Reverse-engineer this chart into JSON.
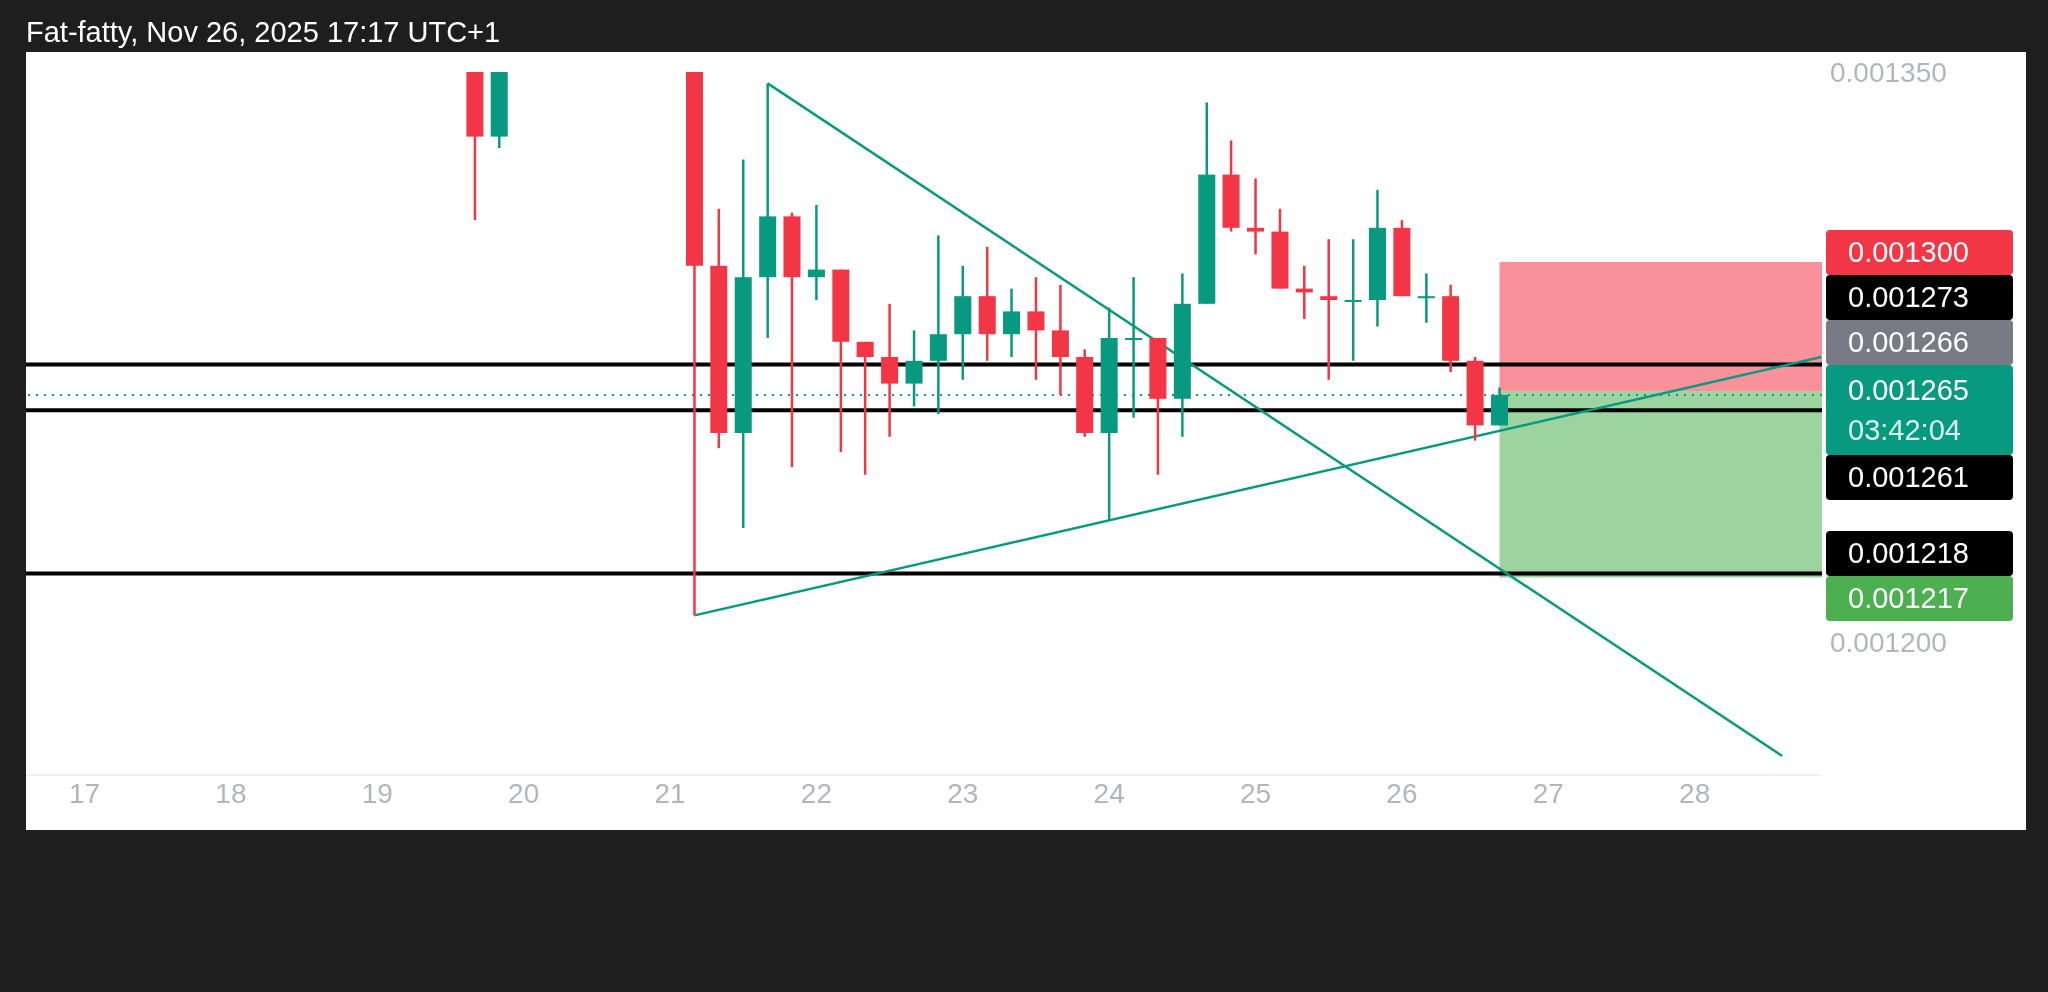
{
  "chart_data": {
    "type": "candlestick",
    "title": "Fat-fatty, Nov 26, 2025 17:17 UTC+1",
    "x": [
      19.667,
      19.833,
      21.167,
      21.333,
      21.5,
      21.667,
      21.833,
      22.0,
      22.167,
      22.333,
      22.5,
      22.667,
      22.833,
      23.0,
      23.167,
      23.333,
      23.5,
      23.667,
      23.833,
      24.0,
      24.167,
      24.333,
      24.5,
      24.667,
      24.833,
      25.0,
      25.167,
      25.333,
      25.5,
      25.667,
      25.833,
      26.0,
      26.167,
      26.333,
      26.5,
      26.667
    ],
    "ohlc": [
      [
        0.00135,
        0.00135,
        0.001311,
        0.001333
      ],
      [
        0.001333,
        0.00135,
        0.00133,
        0.00135
      ],
      [
        0.00135,
        0.00135,
        0.001207,
        0.001299
      ],
      [
        0.001299,
        0.001314,
        0.001251,
        0.001255
      ],
      [
        0.001255,
        0.001327,
        0.00123,
        0.001296
      ],
      [
        0.001296,
        0.001347,
        0.00128,
        0.001312
      ],
      [
        0.001312,
        0.001313,
        0.001246,
        0.001296
      ],
      [
        0.001296,
        0.001315,
        0.00129,
        0.001298
      ],
      [
        0.001298,
        0.001298,
        0.00125,
        0.001279
      ],
      [
        0.001279,
        0.001279,
        0.001244,
        0.001275
      ],
      [
        0.001275,
        0.001289,
        0.001254,
        0.001268
      ],
      [
        0.001268,
        0.001282,
        0.001262,
        0.001274
      ],
      [
        0.001274,
        0.001307,
        0.00126,
        0.001281
      ],
      [
        0.001281,
        0.001299,
        0.001269,
        0.001291
      ],
      [
        0.001291,
        0.001304,
        0.001274,
        0.001281
      ],
      [
        0.001281,
        0.001293,
        0.001275,
        0.001287
      ],
      [
        0.001287,
        0.001296,
        0.001269,
        0.001282
      ],
      [
        0.001282,
        0.001294,
        0.001265,
        0.001275
      ],
      [
        0.001275,
        0.001277,
        0.001254,
        0.001255
      ],
      [
        0.001255,
        0.001288,
        0.001232,
        0.00128
      ],
      [
        0.00128,
        0.001296,
        0.001259,
        0.00128
      ],
      [
        0.00128,
        0.00128,
        0.001244,
        0.001264
      ],
      [
        0.001264,
        0.001297,
        0.001254,
        0.001289
      ],
      [
        0.001289,
        0.001342,
        0.001289,
        0.001323
      ],
      [
        0.001323,
        0.001332,
        0.001308,
        0.001309
      ],
      [
        0.001309,
        0.001322,
        0.001302,
        0.001308
      ],
      [
        0.001308,
        0.001314,
        0.001293,
        0.001293
      ],
      [
        0.001293,
        0.001299,
        0.001285,
        0.001292
      ],
      [
        0.001291,
        0.001306,
        0.001269,
        0.00129
      ],
      [
        0.00129,
        0.001306,
        0.001274,
        0.00129
      ],
      [
        0.00129,
        0.001319,
        0.001283,
        0.001309
      ],
      [
        0.001309,
        0.001311,
        0.001291,
        0.001291
      ],
      [
        0.001291,
        0.001297,
        0.001284,
        0.001291
      ],
      [
        0.001291,
        0.001294,
        0.001271,
        0.001274
      ],
      [
        0.001274,
        0.001275,
        0.001253,
        0.001257
      ],
      [
        0.001257,
        0.001267,
        0.001257,
        0.001265
      ]
    ],
    "colors": [
      "#f23645",
      "#089981",
      "#f23645",
      "#f23645",
      "#089981",
      "#089981",
      "#f23645",
      "#089981",
      "#f23645",
      "#f23645",
      "#f23645",
      "#089981",
      "#089981",
      "#089981",
      "#f23645",
      "#089981",
      "#f23645",
      "#f23645",
      "#f23645",
      "#089981",
      "#089981",
      "#f23645",
      "#089981",
      "#089981",
      "#f23645",
      "#f23645",
      "#f23645",
      "#f23645",
      "#f23645",
      "#089981",
      "#089981",
      "#f23645",
      "#089981",
      "#f23645",
      "#f23645",
      "#089981"
    ],
    "series": [
      {
        "type": "line",
        "color": "#089981",
        "x": [
          21.667,
          28.598
        ],
        "values": [
          0.001347,
          0.00117
        ]
      },
      {
        "type": "line",
        "color": "#089981",
        "x": [
          21.167,
          28.865
        ],
        "values": [
          0.001207,
          0.001275
        ]
      }
    ],
    "xlim": [
      16.6,
      28.87
    ],
    "xticks": [
      17,
      18,
      19,
      20,
      21,
      22,
      23,
      24,
      25,
      26,
      27,
      28
    ],
    "ylim": [
      0.001165,
      0.00135
    ],
    "yticks": [
      {
        "value": 0.00135,
        "label": "0.001350"
      },
      {
        "value": 0.0012,
        "label": "0.001200"
      }
    ],
    "ref_lines": [
      {
        "axis": "y",
        "value": 0.001273,
        "label": "0.001273",
        "color": "#000000"
      },
      {
        "axis": "y",
        "value": 0.001261,
        "label": "0.001261",
        "color": "#000000"
      },
      {
        "axis": "y",
        "value": 0.001218,
        "label": "0.001218",
        "color": "#000000"
      },
      {
        "axis": "y",
        "value": 0.001265,
        "label": "0.001265\n03:42:04",
        "color": "#089981",
        "line_style": "dotted"
      }
    ],
    "bands": [
      {
        "axis": "y",
        "from": 0.001266,
        "to": 0.0013,
        "label": "0.001300",
        "color": "#f23645"
      },
      {
        "axis": "y",
        "from": 0.001217,
        "to": 0.001266,
        "label": "0.001217",
        "color": "#4caf50"
      }
    ],
    "annotations": [
      "0.001266"
    ]
  }
}
